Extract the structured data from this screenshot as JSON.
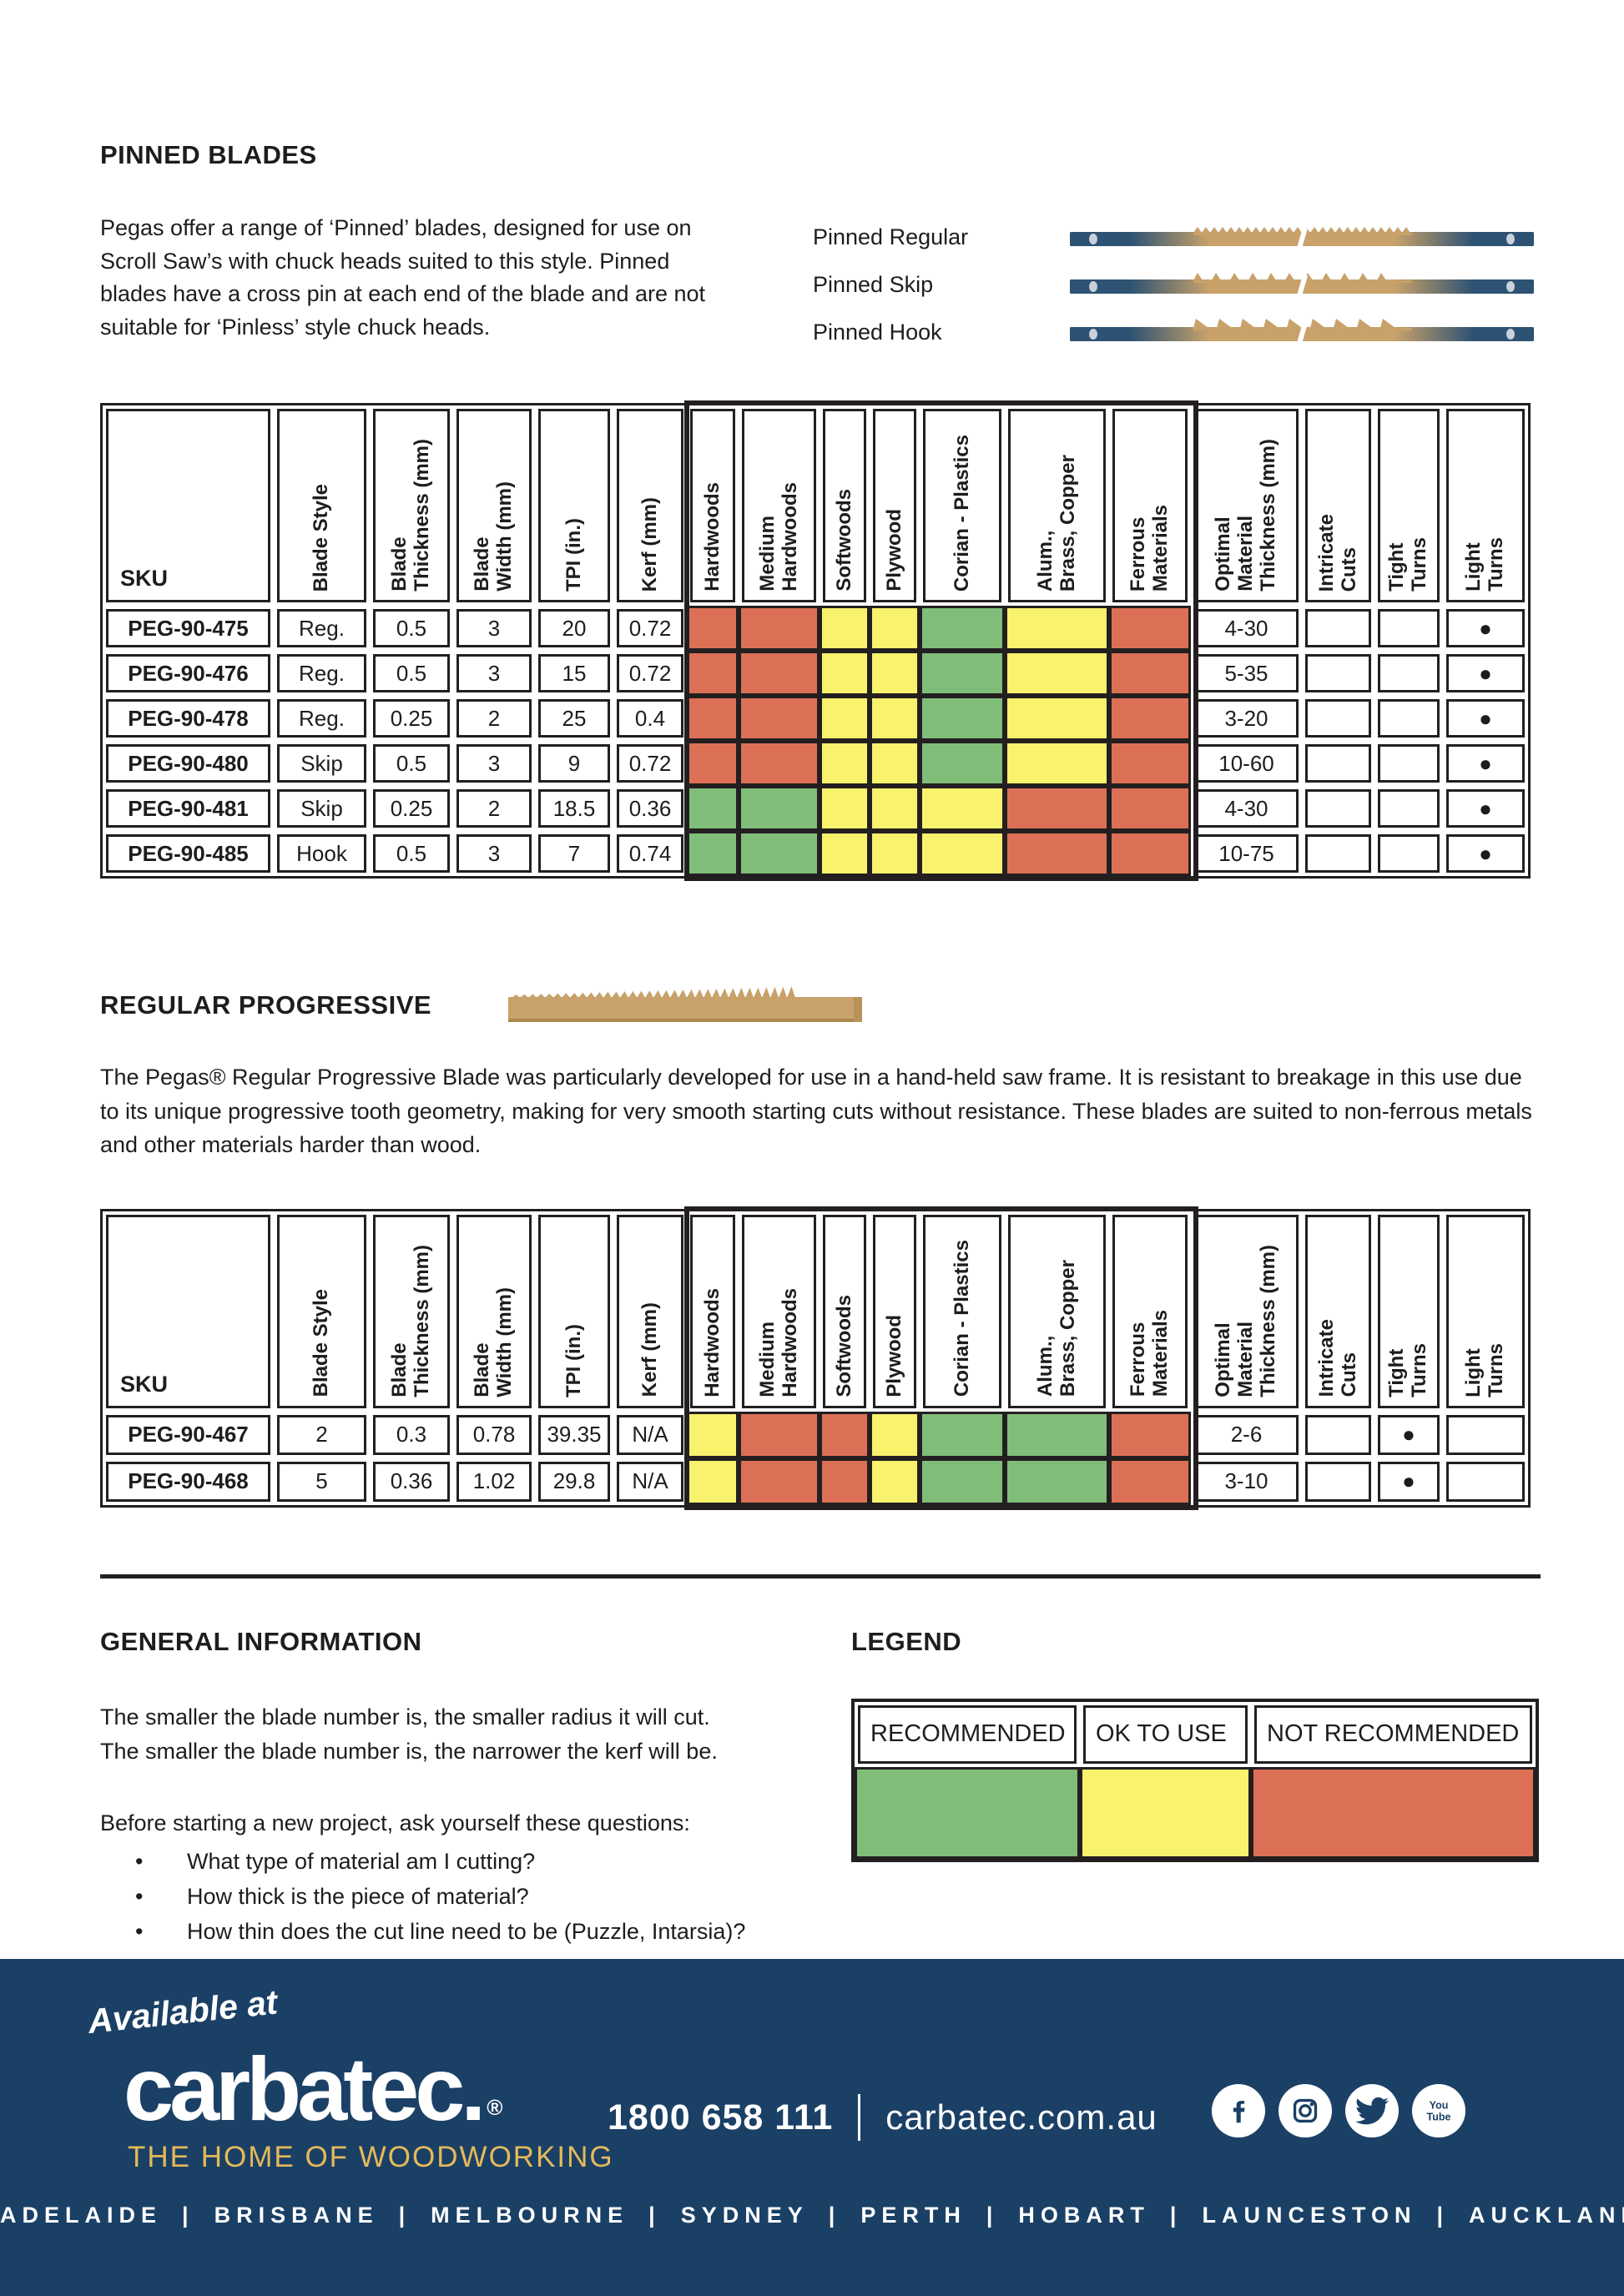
{
  "pinned": {
    "title": "PINNED BLADES",
    "description": "Pegas offer a range of ‘Pinned’ blades, designed for use on Scroll Saw’s with chuck heads suited to this style. Pinned blades have a cross pin at each end of the blade and are not suitable for ‘Pinless’ style chuck heads.",
    "blades": [
      {
        "label": "Pinned Regular",
        "type": "regular"
      },
      {
        "label": "Pinned Skip",
        "type": "skip"
      },
      {
        "label": "Pinned Hook",
        "type": "hook"
      }
    ]
  },
  "table": {
    "columns": [
      "SKU",
      "Blade Style",
      "Blade\nThickness (mm)",
      "Blade\nWidth (mm)",
      "TPI (in.)",
      "Kerf (mm)",
      "Hardwoods",
      "Medium\nHardwoods",
      "Softwoods",
      "Plywood",
      "Corian  - Plastics",
      "Alum.,\nBrass, Copper",
      "Ferrous\nMaterials",
      "Optimal\nMaterial\nThickness (mm)",
      "Intricate\nCuts",
      "Tight\nTurns",
      "Light\nTurns"
    ]
  },
  "pinned_table": {
    "rows": [
      {
        "sku": "PEG-90-475",
        "style": "Reg.",
        "thickness": "0.5",
        "width": "3",
        "tpi": "20",
        "kerf": "0.72",
        "materials": [
          "not",
          "not",
          "ok",
          "ok",
          "rec",
          "ok",
          "not"
        ],
        "optimal": "4-30",
        "intricate": "",
        "tight": "",
        "light": "●"
      },
      {
        "sku": "PEG-90-476",
        "style": "Reg.",
        "thickness": "0.5",
        "width": "3",
        "tpi": "15",
        "kerf": "0.72",
        "materials": [
          "not",
          "not",
          "ok",
          "ok",
          "rec",
          "ok",
          "not"
        ],
        "optimal": "5-35",
        "intricate": "",
        "tight": "",
        "light": "●"
      },
      {
        "sku": "PEG-90-478",
        "style": "Reg.",
        "thickness": "0.25",
        "width": "2",
        "tpi": "25",
        "kerf": "0.4",
        "materials": [
          "not",
          "not",
          "ok",
          "ok",
          "rec",
          "ok",
          "not"
        ],
        "optimal": "3-20",
        "intricate": "",
        "tight": "",
        "light": "●"
      },
      {
        "sku": "PEG-90-480",
        "style": "Skip",
        "thickness": "0.5",
        "width": "3",
        "tpi": "9",
        "kerf": "0.72",
        "materials": [
          "not",
          "not",
          "ok",
          "ok",
          "rec",
          "ok",
          "not"
        ],
        "optimal": "10-60",
        "intricate": "",
        "tight": "",
        "light": "●"
      },
      {
        "sku": "PEG-90-481",
        "style": "Skip",
        "thickness": "0.25",
        "width": "2",
        "tpi": "18.5",
        "kerf": "0.36",
        "materials": [
          "rec",
          "rec",
          "ok",
          "ok",
          "ok",
          "not",
          "not"
        ],
        "optimal": "4-30",
        "intricate": "",
        "tight": "",
        "light": "●"
      },
      {
        "sku": "PEG-90-485",
        "style": "Hook",
        "thickness": "0.5",
        "width": "3",
        "tpi": "7",
        "kerf": "0.74",
        "materials": [
          "rec",
          "rec",
          "ok",
          "ok",
          "ok",
          "not",
          "not"
        ],
        "optimal": "10-75",
        "intricate": "",
        "tight": "",
        "light": "●"
      }
    ]
  },
  "progressive": {
    "title": "REGULAR PROGRESSIVE",
    "description": "The Pegas® Regular Progressive Blade was particularly developed for use in a hand-held saw frame. It is resistant to breakage in this use due to its unique progressive tooth geometry, making for very smooth starting cuts without resistance. These blades are suited to non-ferrous metals and other materials harder than wood."
  },
  "progressive_table": {
    "rows": [
      {
        "sku": "PEG-90-467",
        "style": "2",
        "thickness": "0.3",
        "width": "0.78",
        "tpi": "39.35",
        "kerf": "N/A",
        "materials": [
          "ok",
          "not",
          "not",
          "ok",
          "rec",
          "rec",
          "not"
        ],
        "optimal": "2-6",
        "intricate": "",
        "tight": "●",
        "light": ""
      },
      {
        "sku": "PEG-90-468",
        "style": "5",
        "thickness": "0.36",
        "width": "1.02",
        "tpi": "29.8",
        "kerf": "N/A",
        "materials": [
          "ok",
          "not",
          "not",
          "ok",
          "rec",
          "rec",
          "not"
        ],
        "optimal": "3-10",
        "intricate": "",
        "tight": "●",
        "light": ""
      }
    ]
  },
  "general": {
    "title": "GENERAL INFORMATION",
    "lines": [
      "The smaller the blade number is, the smaller radius it will cut.",
      "The smaller the blade number is, the narrower the kerf will be."
    ],
    "intro": "Before starting a new project, ask yourself these questions:",
    "bullets": [
      "What type of material am I cutting?",
      "How thick is the piece of material?",
      "How thin does the cut line need to be (Puzzle, Intarsia)?"
    ]
  },
  "legend": {
    "title": "LEGEND",
    "items": [
      {
        "label": "RECOMMENDED",
        "key": "rec"
      },
      {
        "label": "OK TO USE",
        "key": "ok"
      },
      {
        "label": "NOT RECOMMENDED",
        "key": "not"
      }
    ]
  },
  "footer": {
    "available_at": "Available at",
    "logo": "carbatec.",
    "registered": "®",
    "tagline": "THE HOME OF WOODWORKING",
    "phone": "1800 658 111",
    "website": "carbatec.com.au",
    "social": [
      "facebook",
      "instagram",
      "twitter",
      "youtube"
    ],
    "cities": [
      "ADELAIDE",
      "BRISBANE",
      "MELBOURNE",
      "SYDNEY",
      "PERTH",
      "HOBART",
      "LAUNCESTON",
      "AUCKLAND"
    ],
    "city_separator": "|"
  },
  "colors": {
    "recommended": "#80bd79",
    "ok_to_use": "#f8f26c",
    "not_recommended": "#dc7056",
    "border": "#231f20",
    "navy": "#1b4066",
    "gold": "#e5b959",
    "blade_navy": "#2d5273",
    "blade_tan": "#c8a26a"
  }
}
